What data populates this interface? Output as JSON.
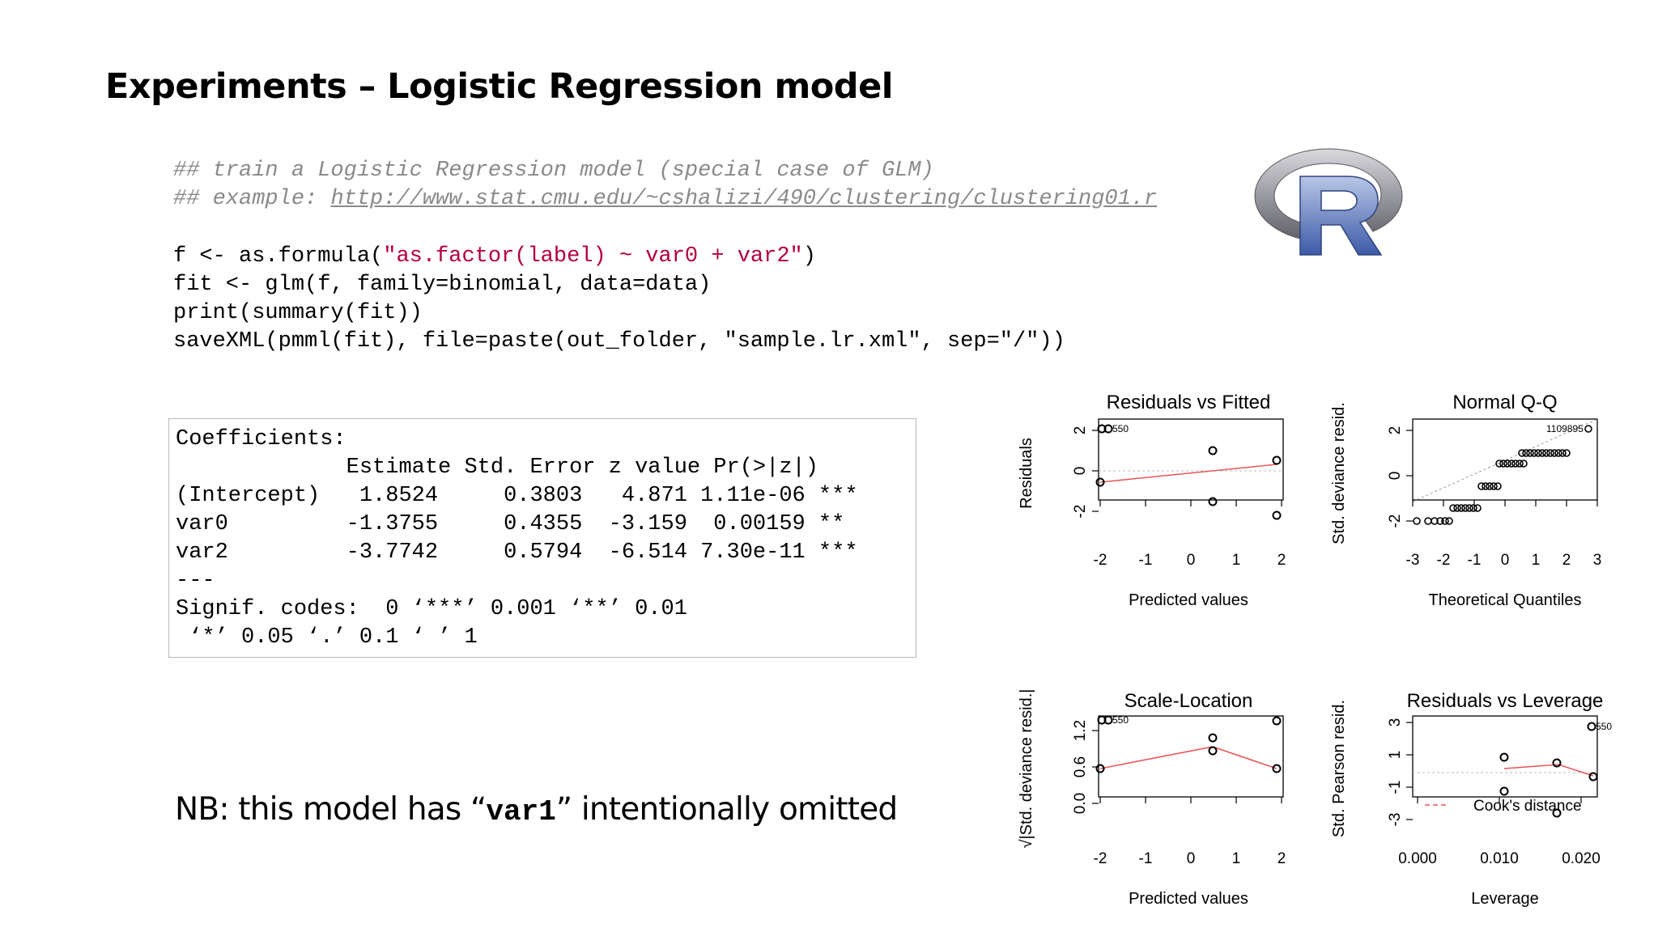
{
  "slide": {
    "title": "Experiments – Logistic Regression model"
  },
  "code": {
    "comment1": "## train a Logistic Regression model (special case of GLM)",
    "comment2_prefix": "## example: ",
    "comment2_link": "http://www.stat.cmu.edu/~cshalizi/490/clustering/clustering01.r",
    "line1_prefix": "f <- as.formula(",
    "line1_string": "\"as.factor(label) ~ var0 + var2\"",
    "line1_suffix": ")",
    "line2": "fit <- glm(f, family=binomial, data=data)",
    "line3": "print(summary(fit))",
    "line4": "saveXML(pmml(fit), file=paste(out_folder, \"sample.lr.xml\", sep=\"/\"))"
  },
  "coefficients": {
    "heading": "Coefficients:",
    "header": "             Estimate Std. Error z value Pr(>|z|)",
    "rows": [
      "(Intercept)   1.8524     0.3803   4.871 1.11e-06 ***",
      "var0         -1.3755     0.4355  -3.159  0.00159 **",
      "var2         -3.7742     0.5794  -6.514 7.30e-11 ***"
    ],
    "separator": "---",
    "signif_line1": "Signif. codes:  0 ‘***’ 0.001 ‘**’ 0.01",
    "signif_line2": " ‘*’ 0.05 ‘.’ 0.1 ‘ ’ 1"
  },
  "note": {
    "prefix": "NB:  this model has “",
    "code": "var1",
    "suffix": "” intentionally omitted"
  },
  "logo": {
    "icon": "r-logo-icon",
    "letter": "R"
  },
  "plots": {
    "p1": {
      "title": "Residuals vs Fitted",
      "xlabel": "Predicted values",
      "ylabel": "Residuals",
      "xticks": [
        "-2",
        "-1",
        "0",
        "1",
        "2"
      ],
      "yticks": [
        "-2",
        "0",
        "2"
      ],
      "point_label": "550"
    },
    "p2": {
      "title": "Normal Q-Q",
      "xlabel": "Theoretical Quantiles",
      "ylabel": "Std. deviance resid.",
      "xticks": [
        "-3",
        "-2",
        "-1",
        "0",
        "1",
        "2",
        "3"
      ],
      "yticks": [
        "-2",
        "0",
        "2"
      ],
      "point_label": "1109895"
    },
    "p3": {
      "title": "Scale-Location",
      "xlabel": "Predicted values",
      "ylabel": "√|Std. deviance resid.|",
      "xticks": [
        "-2",
        "-1",
        "0",
        "1",
        "2"
      ],
      "yticks": [
        "0.0",
        "0.6",
        "1.2"
      ],
      "point_label": "550"
    },
    "p4": {
      "title": "Residuals vs Leverage",
      "xlabel": "Leverage",
      "ylabel": "Std. Pearson resid.",
      "xticks": [
        "0.000",
        "0.010",
        "0.020"
      ],
      "yticks": [
        "-3",
        "-1",
        "1",
        "3"
      ],
      "point_label": "550",
      "legend": "Cook's distance"
    }
  },
  "colors": {
    "string": "#b3003b",
    "comment": "#8a8a8a",
    "fit_line": "#e8575a",
    "ref_line": "#bbbbbb"
  }
}
